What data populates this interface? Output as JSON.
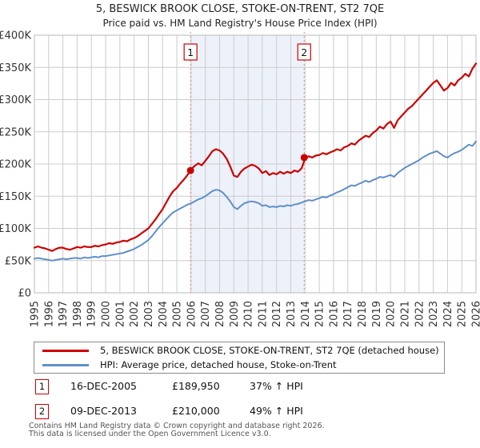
{
  "title": "5, BESWICK BROOK CLOSE, STOKE-ON-TRENT, ST2 7QE",
  "subtitle": "Price paid vs. HM Land Registry's House Price Index (HPI)",
  "chart_data": {
    "type": "line",
    "x_start": 1995,
    "x_end": 2026,
    "x0": 1995,
    "x_step": 0.25,
    "x_ticks": [
      1995,
      1996,
      1997,
      1998,
      1999,
      2000,
      2001,
      2002,
      2003,
      2004,
      2005,
      2006,
      2007,
      2008,
      2009,
      2010,
      2011,
      2012,
      2013,
      2014,
      2015,
      2016,
      2017,
      2018,
      2019,
      2020,
      2021,
      2022,
      2023,
      2024,
      2025,
      2026
    ],
    "y_ticks": [
      {
        "value_k": 0,
        "label": "£0"
      },
      {
        "value_k": 50,
        "label": "£50K"
      },
      {
        "value_k": 100,
        "label": "£100K"
      },
      {
        "value_k": 150,
        "label": "£150K"
      },
      {
        "value_k": 200,
        "label": "£200K"
      },
      {
        "value_k": 250,
        "label": "£250K"
      },
      {
        "value_k": 300,
        "label": "£300K"
      },
      {
        "value_k": 350,
        "label": "£350K"
      },
      {
        "value_k": 400,
        "label": "£400K"
      }
    ],
    "ylim_k": [
      0,
      400
    ],
    "grid_color": "#cccccc",
    "border_color": "#b8b8b8",
    "dashed_line_color": "#ec8888",
    "shaded_span": {
      "from": 2005.96,
      "to": 2013.94,
      "color": "#edf1fa"
    },
    "series": [
      {
        "id": "price-paid",
        "name": "5, BESWICK BROOK CLOSE, STOKE-ON-TRENT, ST2 7QE (detached house)",
        "color": "#cc0000",
        "width": 2.2,
        "values_k": [
          70,
          72,
          70,
          69,
          67,
          65,
          68,
          70,
          70,
          68,
          67,
          69,
          71,
          70,
          72,
          71,
          71,
          73,
          72,
          74,
          75,
          77,
          76,
          78,
          79,
          81,
          80,
          83,
          85,
          88,
          92,
          96,
          100,
          107,
          114,
          122,
          130,
          140,
          150,
          158,
          163,
          170,
          176,
          183,
          192,
          197,
          201,
          198,
          205,
          212,
          220,
          223,
          221,
          216,
          208,
          196,
          182,
          180,
          188,
          193,
          196,
          199,
          197,
          193,
          186,
          189,
          183,
          186,
          184,
          188,
          185,
          188,
          186,
          190,
          188,
          193,
          208,
          212,
          210,
          213,
          214,
          217,
          215,
          218,
          220,
          223,
          221,
          226,
          228,
          232,
          230,
          236,
          240,
          244,
          242,
          248,
          252,
          258,
          255,
          262,
          266,
          256,
          268,
          274,
          280,
          286,
          290,
          296,
          302,
          308,
          314,
          320,
          326,
          330,
          322,
          314,
          318,
          326,
          322,
          330,
          334,
          340,
          336,
          348,
          356
        ]
      },
      {
        "id": "hpi",
        "name": "HPI: Average price, detached house, Stoke-on-Trent",
        "color": "#5f8fc7",
        "width": 2,
        "values_k": [
          53,
          54,
          53,
          52,
          51,
          50,
          51,
          52,
          53,
          52,
          53,
          54,
          54,
          53,
          55,
          54,
          55,
          56,
          55,
          57,
          57,
          58,
          59,
          60,
          61,
          62,
          64,
          66,
          68,
          71,
          74,
          78,
          82,
          88,
          95,
          102,
          108,
          114,
          120,
          125,
          128,
          131,
          134,
          137,
          139,
          142,
          145,
          147,
          150,
          154,
          158,
          160,
          159,
          155,
          149,
          142,
          133,
          130,
          135,
          139,
          141,
          142,
          141,
          139,
          135,
          136,
          133,
          134,
          133,
          135,
          134,
          136,
          135,
          137,
          138,
          140,
          142,
          144,
          143,
          145,
          147,
          149,
          148,
          151,
          153,
          156,
          158,
          161,
          164,
          167,
          166,
          169,
          171,
          174,
          172,
          175,
          177,
          180,
          179,
          181,
          183,
          180,
          186,
          190,
          194,
          197,
          200,
          203,
          206,
          210,
          213,
          216,
          218,
          220,
          216,
          212,
          210,
          214,
          217,
          219,
          222,
          226,
          230,
          228,
          235
        ]
      }
    ],
    "markers": [
      {
        "label": "1",
        "year": 2005.96,
        "value_k": 189.95
      },
      {
        "label": "2",
        "year": 2013.94,
        "value_k": 210
      }
    ]
  },
  "legend": {
    "items": [
      {
        "label": "5, BESWICK BROOK CLOSE, STOKE-ON-TRENT, ST2 7QE (detached house)",
        "color": "#cc0000"
      },
      {
        "label": "HPI: Average price, detached house, Stoke-on-Trent",
        "color": "#5f8fc7"
      }
    ]
  },
  "transactions": [
    {
      "num": "1",
      "date": "16-DEC-2005",
      "price": "£189,950",
      "hpi": "37% ↑ HPI"
    },
    {
      "num": "2",
      "date": "09-DEC-2013",
      "price": "£210,000",
      "hpi": "49% ↑ HPI"
    }
  ],
  "footer": {
    "line1": "Contains HM Land Registry data © Crown copyright and database right 2026.",
    "line2": "This data is licensed under the Open Government Licence v3.0."
  }
}
